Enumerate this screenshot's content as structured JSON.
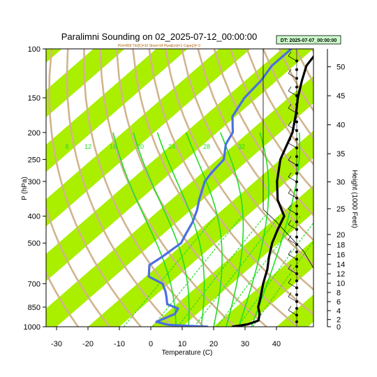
{
  "chart_data": {
    "type": "line",
    "title": "Paralimni Sounding on 02_2025-07-12_00:00:00",
    "subtitle": "Plcl=809 Tlcl[C]=10 Shox=14 Pwat[cm]=1 Cape[J]= 0",
    "datetime_badge": "DT: 2025-07-07_00:00:00",
    "xlabel": "Temperature (C)",
    "ylabel": "P (hPa)",
    "y2label": "Height (1000 Feet)",
    "xlim": [
      -33,
      43
    ],
    "ylim": [
      1000,
      100
    ],
    "y_scale": "log",
    "x_ticks": [
      -30,
      -20,
      -10,
      0,
      10,
      20,
      30,
      40
    ],
    "y_ticks": [
      100,
      150,
      200,
      250,
      300,
      400,
      500,
      700,
      850,
      1000
    ],
    "height_ticks": [
      0,
      2,
      4,
      6,
      8,
      10,
      12,
      14,
      16,
      18,
      20,
      25,
      30,
      35,
      40,
      45,
      50
    ],
    "mixing_ratio_labels": [
      "8",
      "12",
      "16",
      "20",
      "24",
      "28",
      "32"
    ],
    "series": [
      {
        "name": "Temperature",
        "color": "#000000",
        "points": [
          [
            26,
            1000
          ],
          [
            30,
            980
          ],
          [
            32,
            950
          ],
          [
            30,
            900
          ],
          [
            27,
            850
          ],
          [
            24,
            780
          ],
          [
            20,
            700
          ],
          [
            16,
            620
          ],
          [
            12,
            560
          ],
          [
            8,
            500
          ],
          [
            5,
            450
          ],
          [
            2,
            400
          ],
          [
            -6,
            350
          ],
          [
            -13,
            300
          ],
          [
            -20,
            250
          ],
          [
            -26,
            200
          ],
          [
            -32,
            170
          ],
          [
            -37,
            150
          ],
          [
            -42,
            130
          ],
          [
            -46,
            115
          ],
          [
            -48,
            100
          ]
        ]
      },
      {
        "name": "Dew point",
        "color": "#4a6fe0",
        "points": [
          [
            18,
            1000
          ],
          [
            5,
            985
          ],
          [
            0,
            960
          ],
          [
            3,
            900
          ],
          [
            2,
            860
          ],
          [
            -3,
            830
          ],
          [
            -6,
            780
          ],
          [
            -8,
            750
          ],
          [
            -12,
            700
          ],
          [
            -19,
            660
          ],
          [
            -23,
            600
          ],
          [
            -22,
            560
          ],
          [
            -21,
            500
          ],
          [
            -23,
            460
          ],
          [
            -25,
            420
          ],
          [
            -28,
            380
          ],
          [
            -31,
            350
          ],
          [
            -36,
            300
          ],
          [
            -37,
            280
          ],
          [
            -38,
            250
          ],
          [
            -43,
            220
          ],
          [
            -45,
            200
          ],
          [
            -51,
            175
          ],
          [
            -54,
            150
          ],
          [
            -55,
            130
          ],
          [
            -57,
            115
          ],
          [
            -57,
            100
          ]
        ]
      }
    ],
    "grid": true
  }
}
